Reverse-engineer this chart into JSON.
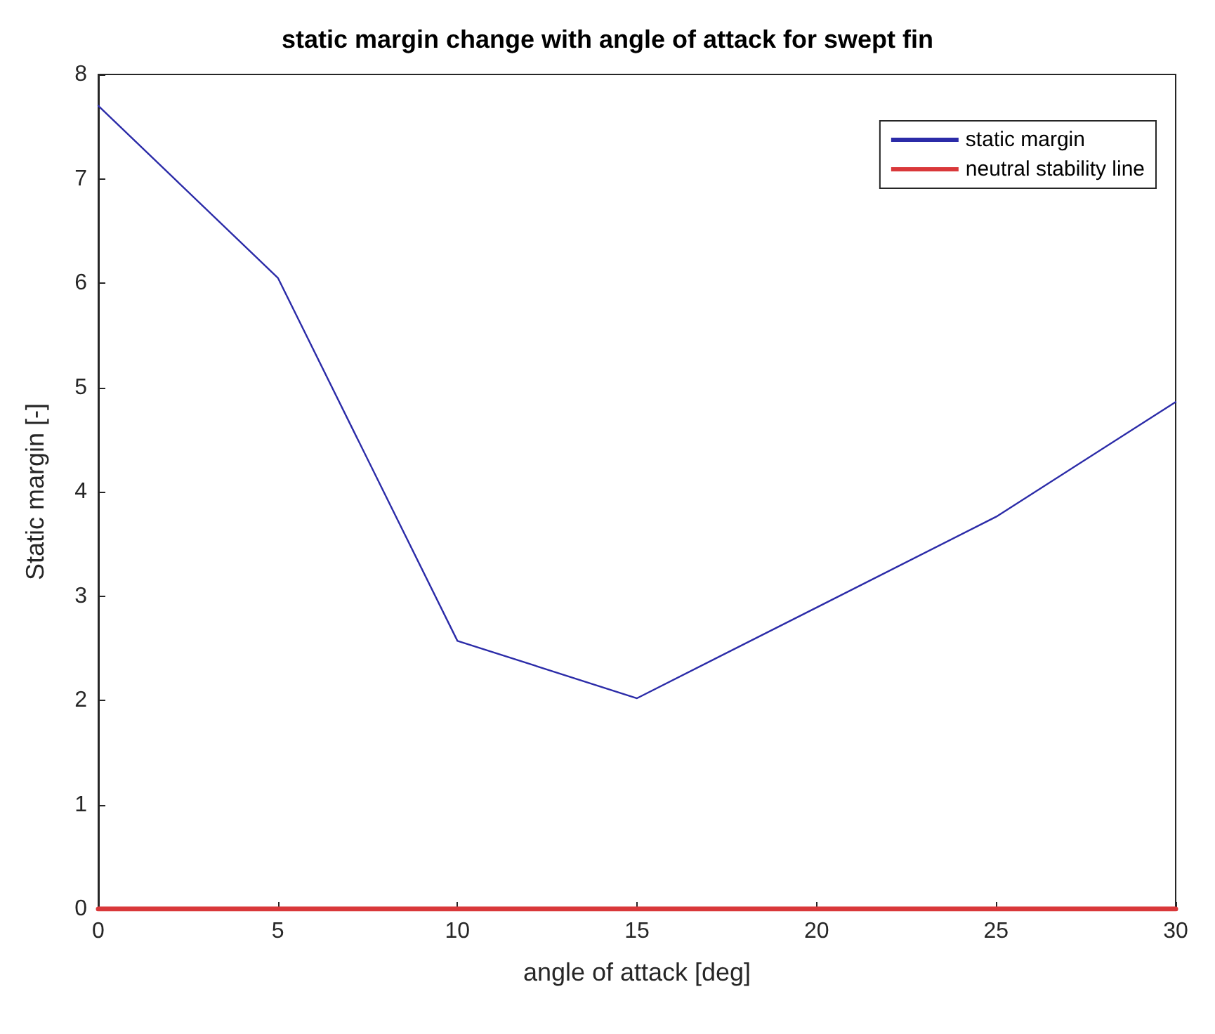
{
  "chart_data": {
    "type": "line",
    "title": "static margin change with angle of attack for swept fin",
    "xlabel": "angle of attack [deg]",
    "ylabel": "Static margin [-]",
    "x": [
      0,
      5,
      10,
      15,
      20,
      25,
      30
    ],
    "series": [
      {
        "name": "static margin",
        "color": "#2b2ba8",
        "values": [
          7.7,
          6.05,
          2.57,
          2.02,
          2.89,
          3.76,
          4.86
        ]
      },
      {
        "name": "neutral stability line",
        "color": "#d9383a",
        "x": [
          0,
          30
        ],
        "values": [
          0,
          0
        ]
      }
    ],
    "xlim": [
      0,
      30
    ],
    "xticks": [
      0,
      5,
      10,
      15,
      20,
      25,
      30
    ],
    "ylim": [
      0,
      8
    ],
    "yticks": [
      0,
      1,
      2,
      3,
      4,
      5,
      6,
      7,
      8
    ],
    "grid": false,
    "legend": "top right",
    "marker": "none",
    "line_style": "solid"
  }
}
